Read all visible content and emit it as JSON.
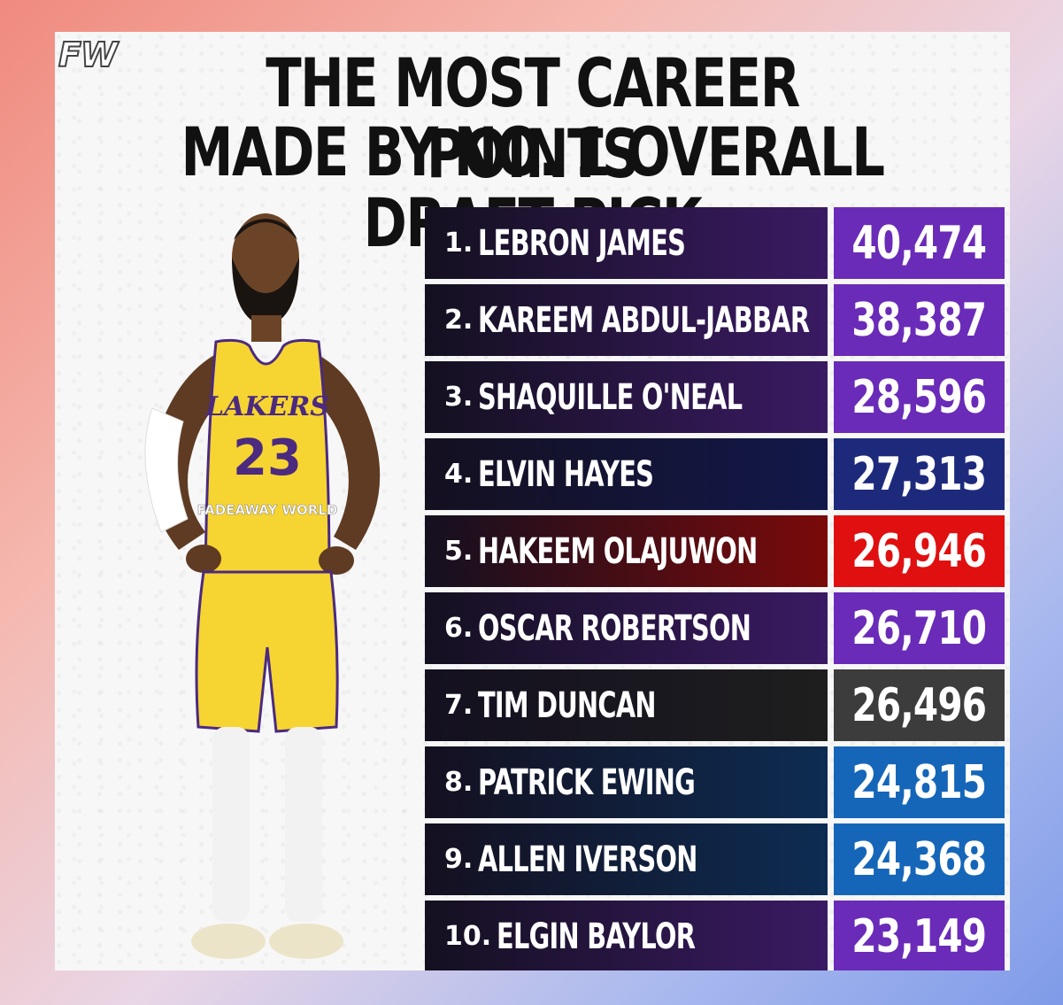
{
  "logo": "FW",
  "title_line1": "THE MOST CAREER POINTS",
  "title_line2": "MADE BY NO. 1 OVERALL DRAFT PICK",
  "player": {
    "team_wordmark": "LAKERS",
    "jersey_number": "23",
    "watermark": "FADEAWAY WORLD"
  },
  "rows": [
    {
      "rank": "1.",
      "name": "LEBRON JAMES",
      "points": "40,474",
      "name_color": "#3a1a63",
      "pts_color": "#6a2bb8"
    },
    {
      "rank": "2.",
      "name": "KAREEM ABDUL-JABBAR",
      "points": "38,387",
      "name_color": "#3a1a63",
      "pts_color": "#6a2bb8"
    },
    {
      "rank": "3.",
      "name": "SHAQUILLE O'NEAL",
      "points": "28,596",
      "name_color": "#3a1a63",
      "pts_color": "#6a2bb8"
    },
    {
      "rank": "4.",
      "name": "ELVIN HAYES",
      "points": "27,313",
      "name_color": "#12184a",
      "pts_color": "#1d2a7c"
    },
    {
      "rank": "5.",
      "name": "HAKEEM OLAJUWON",
      "points": "26,946",
      "name_color": "#7a0a0a",
      "pts_color": "#e01010"
    },
    {
      "rank": "6.",
      "name": "OSCAR ROBERTSON",
      "points": "26,710",
      "name_color": "#3a1a63",
      "pts_color": "#6a2bb8"
    },
    {
      "rank": "7.",
      "name": "TIM DUNCAN",
      "points": "26,496",
      "name_color": "#1e1e1e",
      "pts_color": "#3c3c3c"
    },
    {
      "rank": "8.",
      "name": "PATRICK EWING",
      "points": "24,815",
      "name_color": "#0d2c52",
      "pts_color": "#1566b8"
    },
    {
      "rank": "9.",
      "name": "ALLEN IVERSON",
      "points": "24,368",
      "name_color": "#0d2c52",
      "pts_color": "#1566b8"
    },
    {
      "rank": "10.",
      "name": "ELGIN BAYLOR",
      "points": "23,149",
      "name_color": "#3a1a63",
      "pts_color": "#6a2bb8"
    }
  ]
}
